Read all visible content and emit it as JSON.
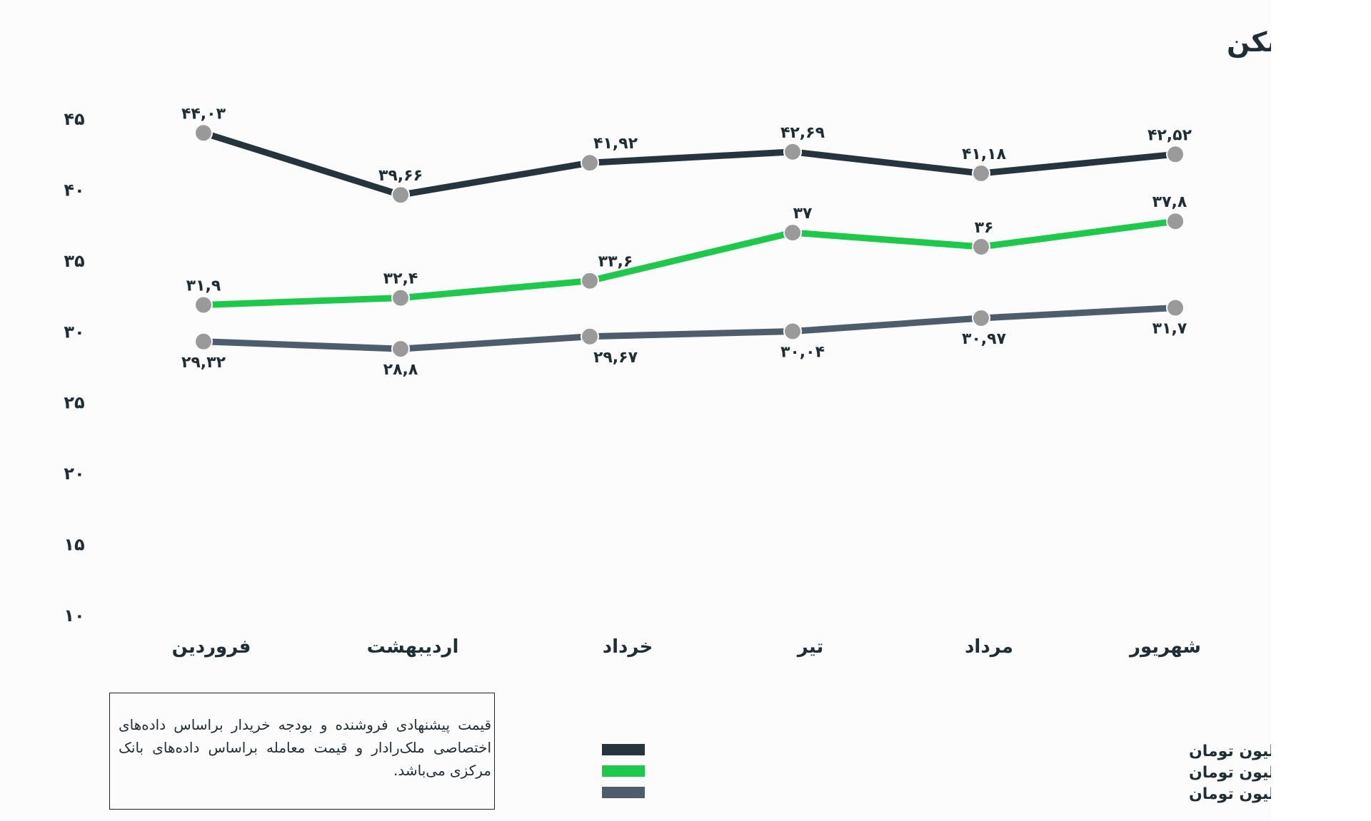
{
  "colors": {
    "seller": "#26343d",
    "buyer": "#1ec84a",
    "transaction": "#4e5d6c",
    "marker": "#9a9a9a",
    "text": "#1f2d35"
  },
  "note": "قیمت پیشنهادی فروشنده و بودجه خریدار براساس داده‌های اختصاصی ملک‌رادار و قیمت معامله براساس داده‌های بانک مرکزی می‌باشد.",
  "chart_data": {
    "type": "line",
    "title": "تحلیل بازار مسکن",
    "xlabel": "",
    "ylabel": "",
    "ylim": [
      10,
      45
    ],
    "grid": false,
    "legend_position": "bottom-right",
    "categories": [
      "فروردین",
      "اردیبهشت",
      "خرداد",
      "تیر",
      "مرداد",
      "شهریور"
    ],
    "y_ticks": [
      {
        "value": 45,
        "label": "۴۵"
      },
      {
        "value": 40,
        "label": "۴۰"
      },
      {
        "value": 35,
        "label": "۳۵"
      },
      {
        "value": 30,
        "label": "۳۰"
      },
      {
        "value": 25,
        "label": "۲۵"
      },
      {
        "value": 20,
        "label": "۲۰"
      },
      {
        "value": 15,
        "label": "۱۵"
      },
      {
        "value": 10,
        "label": "۱۰"
      }
    ],
    "series": [
      {
        "name": "متوسط قیمت پیشنهادی فروشنده برای هر مترمربع به میلیون تومان",
        "key": "seller",
        "values": [
          44.03,
          39.66,
          41.92,
          42.69,
          41.18,
          42.52
        ],
        "labels": [
          "۴۴,۰۳",
          "۳۹,۶۶",
          "۴۱,۹۲",
          "۴۲,۶۹",
          "۴۱,۱۸",
          "۴۲,۵۲"
        ],
        "label_position": "above"
      },
      {
        "name": "متوسط بودجه خریدار برای هر مترمربع به میلیون تومان",
        "key": "buyer",
        "values": [
          31.9,
          32.4,
          33.6,
          37,
          36,
          37.8
        ],
        "labels": [
          "۳۱,۹",
          "۳۲,۴",
          "۳۳,۶",
          "۳۷",
          "۳۶",
          "۳۷,۸"
        ],
        "label_position": "above"
      },
      {
        "name": "متوسط قیمت معامله برای هر مترمربع به میلیون تومان",
        "key": "transaction",
        "values": [
          29.32,
          28.8,
          29.67,
          30.04,
          30.97,
          31.7
        ],
        "labels": [
          "۲۹,۳۲",
          "۲۸,۸",
          "۲۹,۶۷",
          "۳۰,۰۴",
          "۳۰,۹۷",
          "۳۱,۷"
        ],
        "label_position": "below"
      }
    ]
  }
}
